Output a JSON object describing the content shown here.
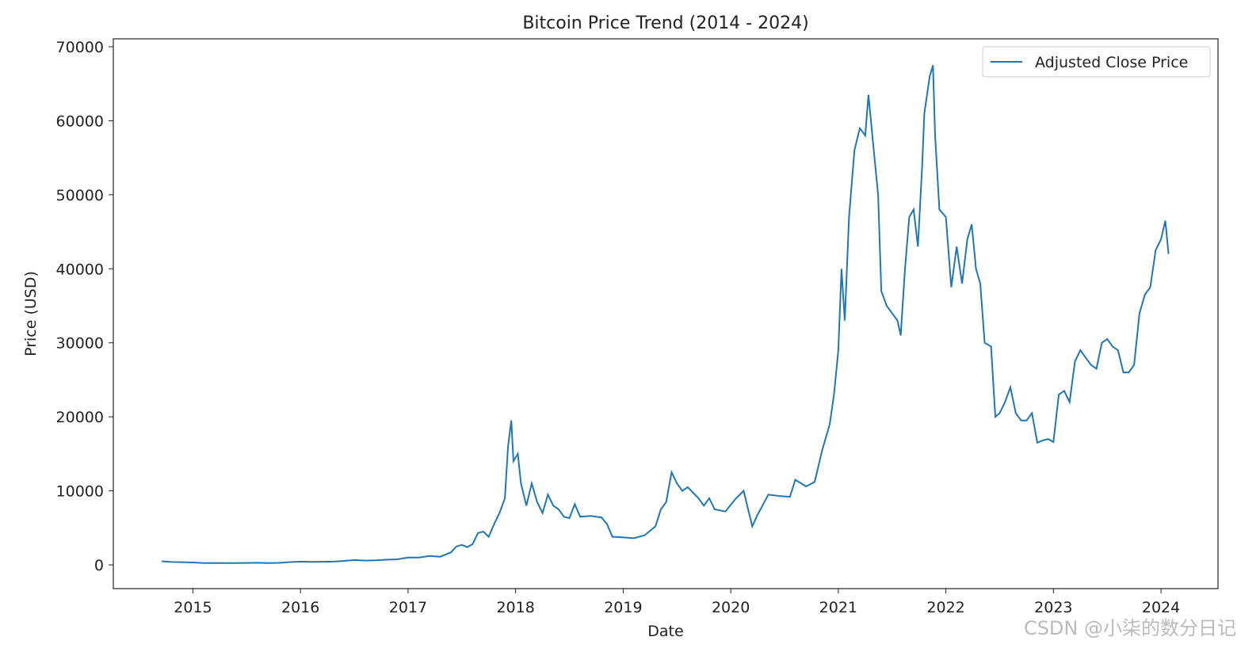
{
  "chart_data": {
    "type": "line",
    "title": "Bitcoin Price Trend (2014 - 2024)",
    "xlabel": "Date",
    "ylabel": "Price (USD)",
    "watermark": "CSDN @小柒的数分日记",
    "legend": "upper right",
    "xlim": [
      2014.26,
      2024.53
    ],
    "xticks": [
      2015,
      2016,
      2017,
      2018,
      2019,
      2020,
      2021,
      2022,
      2023,
      2024
    ],
    "ylim": [
      -3210,
      71070
    ],
    "yticks": [
      0,
      10000,
      20000,
      30000,
      40000,
      50000,
      60000,
      70000
    ],
    "x": [
      2014.71,
      2014.8,
      2014.9,
      2015.0,
      2015.1,
      2015.2,
      2015.3,
      2015.4,
      2015.5,
      2015.6,
      2015.7,
      2015.8,
      2015.9,
      2016.0,
      2016.1,
      2016.2,
      2016.3,
      2016.4,
      2016.5,
      2016.6,
      2016.7,
      2016.8,
      2016.9,
      2017.0,
      2017.1,
      2017.2,
      2017.3,
      2017.4,
      2017.45,
      2017.5,
      2017.55,
      2017.6,
      2017.65,
      2017.7,
      2017.75,
      2017.8,
      2017.85,
      2017.9,
      2017.93,
      2017.96,
      2017.98,
      2018.02,
      2018.05,
      2018.1,
      2018.15,
      2018.2,
      2018.25,
      2018.3,
      2018.35,
      2018.4,
      2018.45,
      2018.5,
      2018.55,
      2018.6,
      2018.7,
      2018.8,
      2018.85,
      2018.9,
      2019.0,
      2019.1,
      2019.2,
      2019.3,
      2019.35,
      2019.4,
      2019.45,
      2019.5,
      2019.55,
      2019.6,
      2019.7,
      2019.75,
      2019.8,
      2019.85,
      2019.95,
      2020.05,
      2020.12,
      2020.2,
      2020.25,
      2020.35,
      2020.45,
      2020.55,
      2020.6,
      2020.7,
      2020.78,
      2020.85,
      2020.92,
      2020.96,
      2021.0,
      2021.03,
      2021.06,
      2021.1,
      2021.15,
      2021.2,
      2021.25,
      2021.28,
      2021.33,
      2021.37,
      2021.4,
      2021.45,
      2021.5,
      2021.55,
      2021.58,
      2021.62,
      2021.66,
      2021.7,
      2021.74,
      2021.78,
      2021.8,
      2021.85,
      2021.88,
      2021.9,
      2021.94,
      2022.0,
      2022.05,
      2022.1,
      2022.15,
      2022.2,
      2022.24,
      2022.28,
      2022.32,
      2022.36,
      2022.42,
      2022.46,
      2022.5,
      2022.55,
      2022.6,
      2022.65,
      2022.7,
      2022.75,
      2022.8,
      2022.85,
      2022.9,
      2022.95,
      2023.0,
      2023.05,
      2023.1,
      2023.15,
      2023.2,
      2023.25,
      2023.3,
      2023.35,
      2023.4,
      2023.45,
      2023.5,
      2023.55,
      2023.6,
      2023.65,
      2023.7,
      2023.75,
      2023.8,
      2023.85,
      2023.9,
      2023.95,
      2024.0,
      2024.04,
      2024.07
    ],
    "series": [
      {
        "name": "Adjusted Close Price",
        "color": "#1f77b4",
        "values": [
          480,
          390,
          370,
          320,
          240,
          260,
          240,
          235,
          260,
          280,
          235,
          270,
          380,
          430,
          400,
          420,
          440,
          530,
          650,
          580,
          610,
          700,
          750,
          990,
          1000,
          1200,
          1100,
          1700,
          2500,
          2700,
          2400,
          2800,
          4300,
          4500,
          3800,
          5500,
          7000,
          9000,
          16000,
          19500,
          14000,
          15000,
          11000,
          8000,
          11000,
          8500,
          7000,
          9500,
          8000,
          7500,
          6500,
          6300,
          8200,
          6500,
          6600,
          6400,
          5500,
          3800,
          3700,
          3600,
          4000,
          5200,
          7500,
          8500,
          12500,
          11000,
          10000,
          10500,
          9000,
          8000,
          9000,
          7500,
          7200,
          9000,
          10000,
          5200,
          6800,
          9500,
          9300,
          9200,
          11500,
          10600,
          11200,
          15500,
          19000,
          23000,
          29000,
          40000,
          33000,
          47000,
          56000,
          59000,
          58000,
          63500,
          56000,
          50000,
          37000,
          35000,
          34000,
          33000,
          31000,
          40000,
          47000,
          48000,
          43000,
          54000,
          61000,
          66000,
          67500,
          58000,
          48000,
          47000,
          37500,
          43000,
          38000,
          44000,
          46000,
          40000,
          38000,
          30000,
          29500,
          20000,
          20500,
          22000,
          24000,
          20500,
          19500,
          19500,
          20500,
          16500,
          16800,
          17000,
          16600,
          23000,
          23500,
          22000,
          27500,
          29000,
          28000,
          27000,
          26500,
          30000,
          30500,
          29500,
          29000,
          26000,
          26000,
          27000,
          34000,
          36500,
          37500,
          42500,
          44000,
          46500,
          42000
        ]
      }
    ]
  }
}
